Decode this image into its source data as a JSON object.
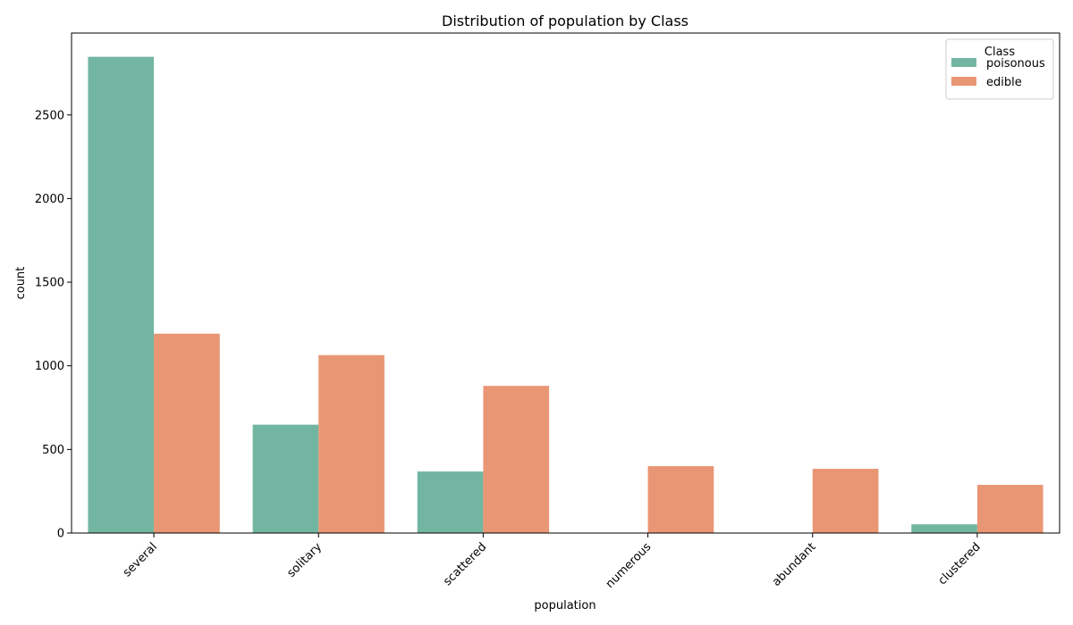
{
  "chart_data": {
    "type": "bar",
    "title": "Distribution of population by Class",
    "xlabel": "population",
    "ylabel": "count",
    "categories": [
      "several",
      "solitary",
      "scattered",
      "numerous",
      "abundant",
      "clustered"
    ],
    "series": [
      {
        "name": "poisonous",
        "color": "#72b6a1",
        "values": [
          2848,
          648,
          368,
          0,
          0,
          52
        ]
      },
      {
        "name": "edible",
        "color": "#e99675",
        "values": [
          1192,
          1064,
          880,
          400,
          384,
          288
        ]
      }
    ],
    "ylim": [
      0,
      2990
    ],
    "yticks": [
      0,
      500,
      1000,
      1500,
      2000,
      2500
    ],
    "grid": false,
    "legend": {
      "title": "Class",
      "placement": "top-right"
    }
  }
}
